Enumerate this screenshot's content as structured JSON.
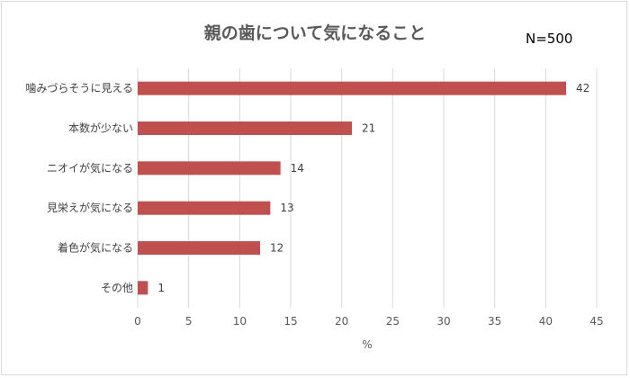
{
  "n_label": "N=500",
  "chart_data": {
    "type": "bar",
    "orientation": "horizontal",
    "title": "親の歯について気になること",
    "xlabel": "%",
    "ylabel": "",
    "xlim": [
      0,
      45
    ],
    "xticks": [
      0,
      5,
      10,
      15,
      20,
      25,
      30,
      35,
      40,
      45
    ],
    "grid": true,
    "bar_color": "#c0504d",
    "categories": [
      "噛みづらそうに見える",
      "本数が少ない",
      "ニオイが気になる",
      "見栄えが気になる",
      "着色が気になる",
      "その他"
    ],
    "values": [
      42,
      21,
      14,
      13,
      12,
      1
    ]
  }
}
